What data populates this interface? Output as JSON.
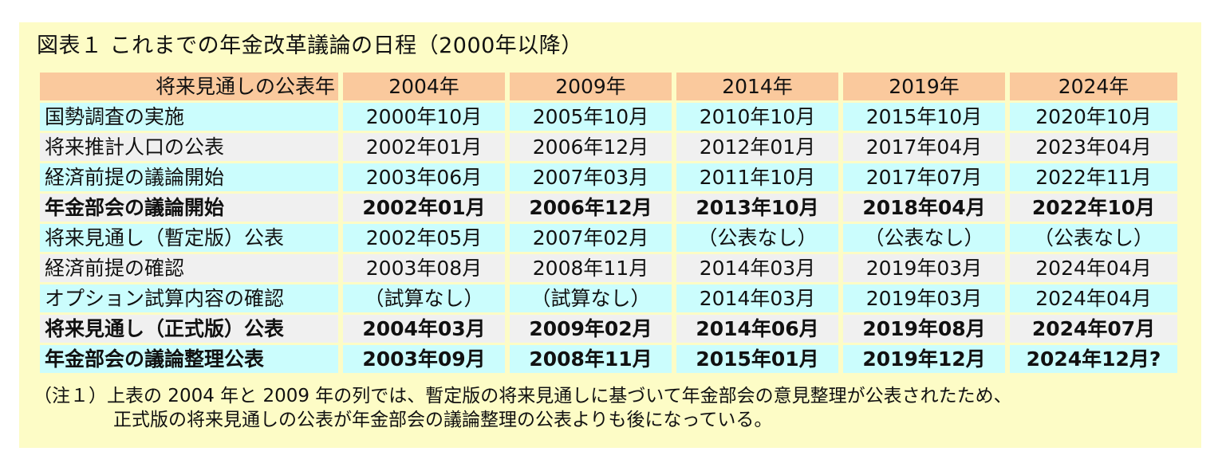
{
  "title": "図表１ これまでの年金改革議論の日程（2000年以降）",
  "table": {
    "header": [
      "将来見通しの公表年",
      "2004年",
      "2009年",
      "2014年",
      "2019年",
      "2024年"
    ],
    "rows": [
      {
        "cells": [
          "国勢調査の実施",
          "2000年10月",
          "2005年10月",
          "2010年10月",
          "2015年10月",
          "2020年10月"
        ],
        "bold": false,
        "shade": "cyan"
      },
      {
        "cells": [
          "将来推計人口の公表",
          "2002年01月",
          "2006年12月",
          "2012年01月",
          "2017年04月",
          "2023年04月"
        ],
        "bold": false,
        "shade": "gray"
      },
      {
        "cells": [
          "経済前提の議論開始",
          "2003年06月",
          "2007年03月",
          "2011年10月",
          "2017年07月",
          "2022年11月"
        ],
        "bold": false,
        "shade": "cyan"
      },
      {
        "cells": [
          "年金部会の議論開始",
          "2002年01月",
          "2006年12月",
          "2013年10月",
          "2018年04月",
          "2022年10月"
        ],
        "bold": true,
        "shade": "gray"
      },
      {
        "cells": [
          "将来見通し（暫定版）公表",
          "2002年05月",
          "2007年02月",
          "（公表なし）",
          "（公表なし）",
          "（公表なし）"
        ],
        "bold": false,
        "shade": "cyan"
      },
      {
        "cells": [
          "経済前提の確認",
          "2003年08月",
          "2008年11月",
          "2014年03月",
          "2019年03月",
          "2024年04月"
        ],
        "bold": false,
        "shade": "gray"
      },
      {
        "cells": [
          "オプション試算内容の確認",
          "（試算なし）",
          "（試算なし）",
          "2014年03月",
          "2019年03月",
          "2024年04月"
        ],
        "bold": false,
        "shade": "cyan"
      },
      {
        "cells": [
          "将来見通し（正式版）公表",
          "2004年03月",
          "2009年02月",
          "2014年06月",
          "2019年08月",
          "2024年07月"
        ],
        "bold": true,
        "shade": "gray"
      },
      {
        "cells": [
          "年金部会の議論整理公表",
          "2003年09月",
          "2008年11月",
          "2015年01月",
          "2019年12月",
          "2024年12月?"
        ],
        "bold": true,
        "shade": "cyan"
      }
    ]
  },
  "note": {
    "line1": "（注１）上表の 2004 年と 2009 年の列では、暫定版の将来見通しに基づいて年金部会の意見整理が公表されたため、",
    "line2": "正式版の将来見通しの公表が年金部会の議論整理の公表よりも後になっている。"
  },
  "colors": {
    "panel": "#fdfcc6",
    "header": "#fac99d",
    "row_cyan": "#cbfdfd",
    "row_gray": "#f0f0f0"
  }
}
